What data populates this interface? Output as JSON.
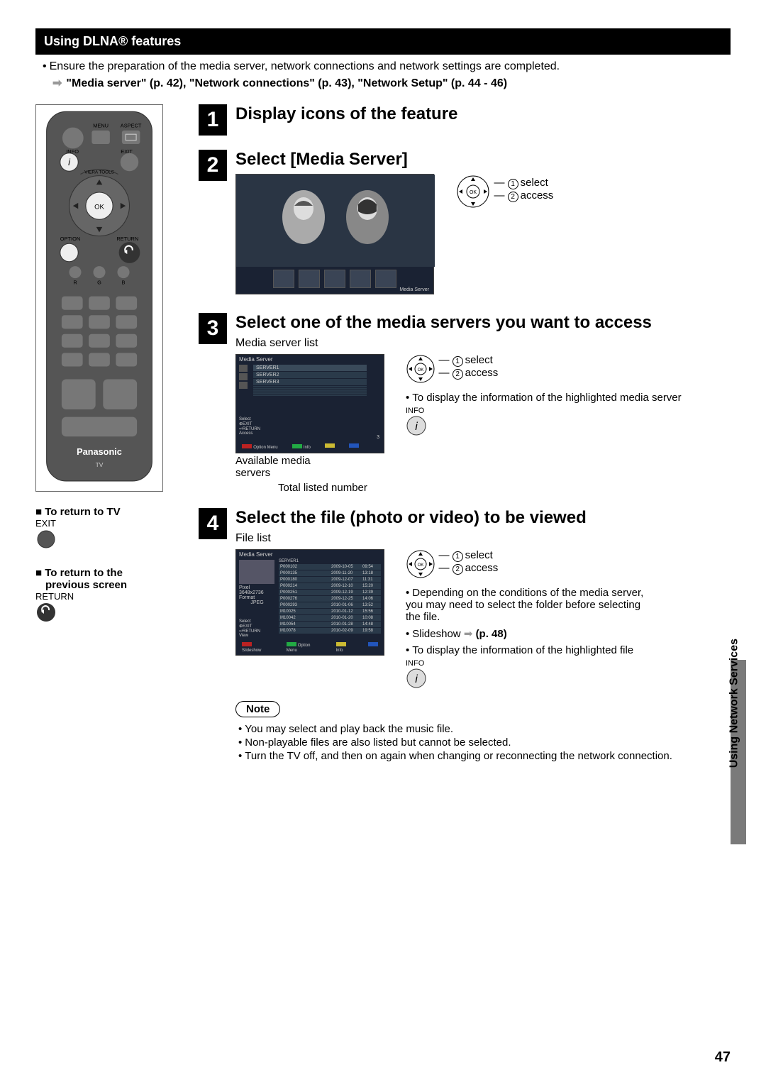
{
  "section_header": "Using DLNA® features",
  "intro": "Ensure the preparation of the media server, network connections and network settings are completed.",
  "intro_ref": "\"Media server\" (p. 42), \"Network connections\" (p. 43), \"Network Setup\" (p. 44 - 46)",
  "side": {
    "return_tv_title": "■ To return to TV",
    "exit_label": "EXIT",
    "return_prev_title_l1": "■ To return to the",
    "return_prev_title_l2": "previous screen",
    "return_label": "RETURN"
  },
  "steps": [
    {
      "num": "1",
      "title": "Display icons of the feature"
    },
    {
      "num": "2",
      "title": "Select [Media Server]",
      "screen_label": "Media Server",
      "select_label": "select",
      "access_label": "access"
    },
    {
      "num": "3",
      "title": "Select one of the media servers you want to access",
      "sublabel": "Media server list",
      "servers": [
        "SERVER1",
        "SERVER2",
        "SERVER3"
      ],
      "screen_title": "Media Server",
      "left_hints": [
        "Select",
        "EXIT",
        "RETURN",
        "Access"
      ],
      "bottom_hints": [
        "Option Menu",
        "Info"
      ],
      "select_label": "select",
      "access_label": "access",
      "info_bullet": "To display the information of the highlighted media server",
      "info_label": "INFO",
      "avail_label_l1": "Available media",
      "avail_label_l2": "servers",
      "total_label": "Total listed number"
    },
    {
      "num": "4",
      "title": "Select the file (photo or video) to be viewed",
      "sublabel": "File list",
      "screen_title": "Media Server",
      "screen_sub": "SERVER1",
      "files": [
        [
          "P000102",
          "2009-10-05",
          "09:54"
        ],
        [
          "P000135",
          "2009-11-20",
          "13:18"
        ],
        [
          "P000180",
          "2009-12-07",
          "11:31"
        ],
        [
          "P000214",
          "2009-12-10",
          "15:20"
        ],
        [
          "P000251",
          "2009-12-19",
          "12:39"
        ],
        [
          "P000276",
          "2009-12-25",
          "14:06"
        ],
        [
          "P000293",
          "2010-01-06",
          "13:52"
        ],
        [
          "M10025",
          "2010-01-12",
          "15:56"
        ],
        [
          "M10042",
          "2010-01-20",
          "10:08"
        ],
        [
          "M10054",
          "2010-01-28",
          "14:48"
        ],
        [
          "M10078",
          "2010-02-09",
          "19:58"
        ]
      ],
      "pixel_label": "Pixel",
      "pixel_val": "3648x2736",
      "format_label": "Format",
      "format_val": "JPEG",
      "left_hints": [
        "Select",
        "EXIT",
        "RETURN",
        "View"
      ],
      "bottom_hints": [
        "Option Menu",
        "Info"
      ],
      "slideshow_label": "Slideshow",
      "select_label": "select",
      "access_label": "access",
      "bullets": [
        "Depending on the conditions of the media server, you may need to select the folder before selecting the file.",
        "Slideshow ➡ (p. 48)",
        "To display the information of the highlighted file"
      ],
      "info_label": "INFO",
      "slideshow_ref": "(p. 48)"
    }
  ],
  "note_label": "Note",
  "notes": [
    "You may select and play back the music file.",
    "Non-playable files are also listed but cannot be selected.",
    "Turn the TV off, and then on again when changing or reconnecting the network connection."
  ],
  "page_number": "47",
  "side_tab_text": "Using Network Services",
  "colors": {
    "black": "#000000",
    "screen_bg": "#1a2233",
    "row_bg": "#3a4a5a",
    "red": "#bb2222",
    "green": "#22aa44",
    "blue": "#2255bb",
    "yellow": "#ccbb33"
  }
}
